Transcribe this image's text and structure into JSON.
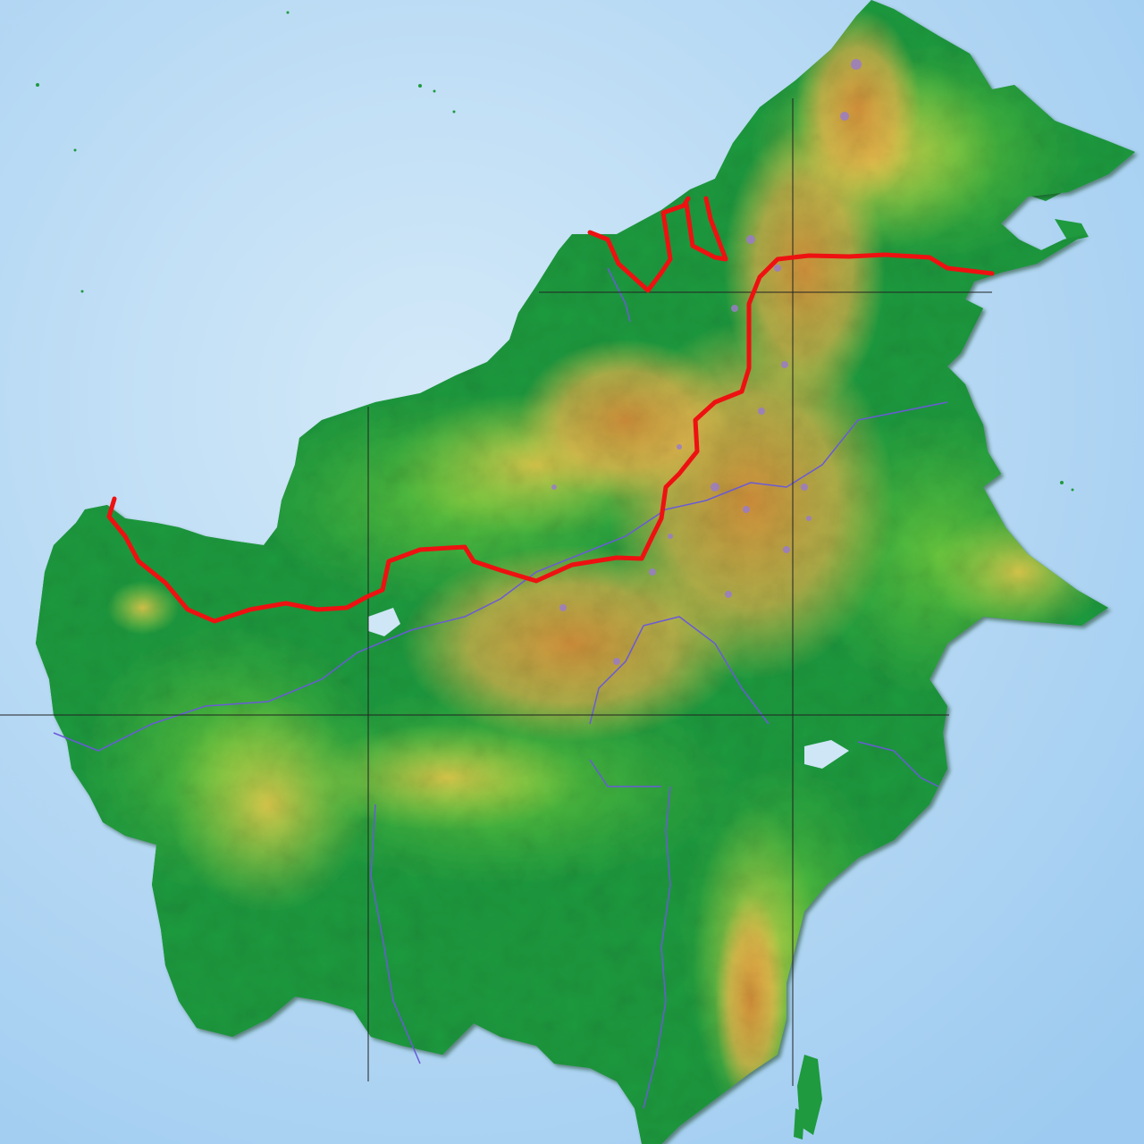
{
  "map": {
    "subject": "Borneo",
    "style": "shaded relief",
    "labels_visible": false,
    "colors": {
      "sea_light": "#d3e9f8",
      "sea_dark": "#9ccaf0",
      "lowland": "#1f9a3f",
      "lowland_light": "#4fbf3c",
      "hills": "#c9d84a",
      "uplands": "#e6b04a",
      "mountains": "#cf8a3c",
      "peaks": "#9a7cc8",
      "border": "#ee1111",
      "rivers": "#6a5ad8",
      "graticule": "#222222"
    },
    "layers": [
      "ocean",
      "landmass",
      "elevation",
      "rivers",
      "graticule",
      "international-border"
    ]
  }
}
